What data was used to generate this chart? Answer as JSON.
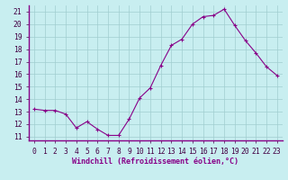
{
  "x": [
    0,
    1,
    2,
    3,
    4,
    5,
    6,
    7,
    8,
    9,
    10,
    11,
    12,
    13,
    14,
    15,
    16,
    17,
    18,
    19,
    20,
    21,
    22,
    23
  ],
  "y": [
    13.2,
    13.1,
    13.1,
    12.8,
    11.7,
    12.2,
    11.6,
    11.1,
    11.1,
    12.4,
    14.1,
    14.9,
    16.7,
    18.3,
    18.8,
    20.0,
    20.6,
    20.7,
    21.2,
    19.9,
    18.7,
    17.7,
    16.6,
    15.9
  ],
  "line_color": "#880088",
  "marker": "+",
  "marker_size": 3,
  "bg_color": "#c8eef0",
  "grid_color": "#a0cdd0",
  "xlabel": "Windchill (Refroidissement éolien,°C)",
  "xlabel_fontsize": 6.0,
  "tick_fontsize": 5.8,
  "ylim": [
    10.7,
    21.5
  ],
  "yticks": [
    11,
    12,
    13,
    14,
    15,
    16,
    17,
    18,
    19,
    20,
    21
  ],
  "xlim": [
    -0.5,
    23.5
  ],
  "xticks": [
    0,
    1,
    2,
    3,
    4,
    5,
    6,
    7,
    8,
    9,
    10,
    11,
    12,
    13,
    14,
    15,
    16,
    17,
    18,
    19,
    20,
    21,
    22,
    23
  ],
  "spine_color": "#880088",
  "separator_color": "#880088"
}
